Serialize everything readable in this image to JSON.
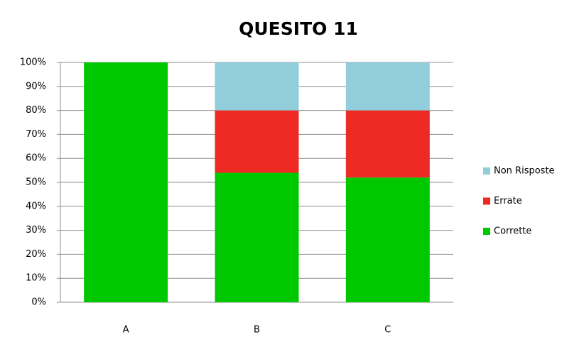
{
  "chart_data": {
    "type": "stacked_bar",
    "title": "QUESITO 11",
    "categories": [
      "A",
      "B",
      "C"
    ],
    "series": [
      {
        "name": "Corrette",
        "color": "#00c800",
        "values": [
          100,
          54,
          52
        ]
      },
      {
        "name": "Errate",
        "color": "#ee2a24",
        "values": [
          0,
          26,
          28
        ]
      },
      {
        "name": "Non Risposte",
        "color": "#92cddc",
        "values": [
          0,
          20,
          20
        ]
      }
    ],
    "ylim": [
      0,
      100
    ],
    "yticks": [
      {
        "value": 0,
        "label": "0%"
      },
      {
        "value": 10,
        "label": "10%"
      },
      {
        "value": 20,
        "label": "20%"
      },
      {
        "value": 30,
        "label": "30%"
      },
      {
        "value": 40,
        "label": "40%"
      },
      {
        "value": 50,
        "label": "50%"
      },
      {
        "value": 60,
        "label": "60%"
      },
      {
        "value": 70,
        "label": "70%"
      },
      {
        "value": 80,
        "label": "80%"
      },
      {
        "value": 90,
        "label": "90%"
      },
      {
        "value": 100,
        "label": "100%"
      }
    ],
    "grid": true,
    "legend": "right"
  }
}
